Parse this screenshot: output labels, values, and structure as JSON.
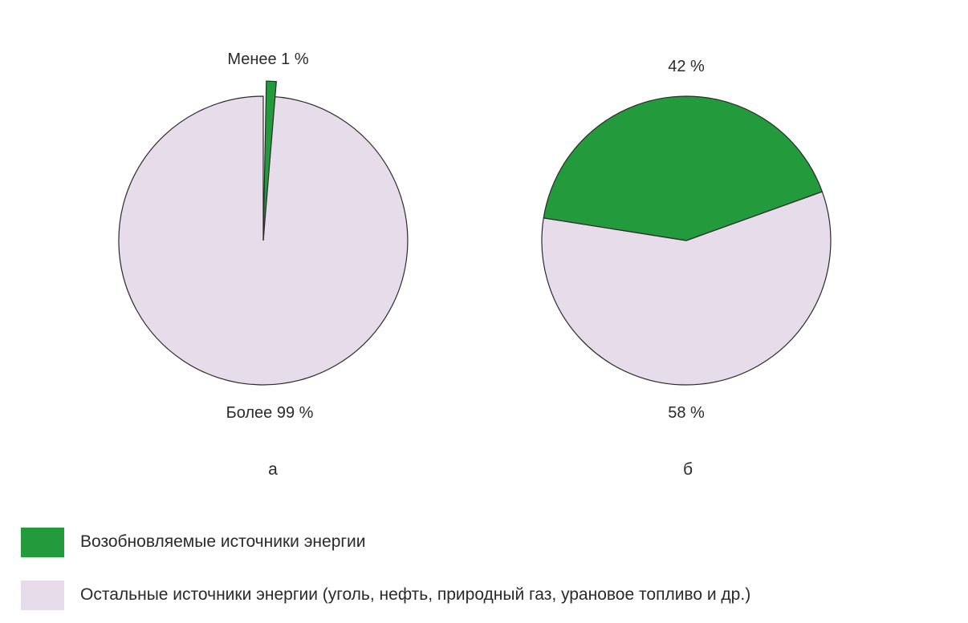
{
  "colors": {
    "renewable": "#239a3b",
    "other": "#e6dcea",
    "outline": "#2a2a2a"
  },
  "chart_data": [
    {
      "type": "pie",
      "panel": "а",
      "title": "",
      "slices": [
        {
          "series": "renewable",
          "value": 1,
          "label": "Менее 1 %"
        },
        {
          "series": "other",
          "value": 99,
          "label": "Более 99 %"
        }
      ]
    },
    {
      "type": "pie",
      "panel": "б",
      "title": "",
      "slices": [
        {
          "series": "renewable",
          "value": 42,
          "label": "42 %"
        },
        {
          "series": "other",
          "value": 58,
          "label": "58 %"
        }
      ]
    }
  ],
  "legend": [
    {
      "series": "renewable",
      "label": "Возобновляемые источники энергии"
    },
    {
      "series": "other",
      "label": "Остальные источники энергии (уголь, нефть, природный газ, урановое топливо и др.)"
    }
  ]
}
